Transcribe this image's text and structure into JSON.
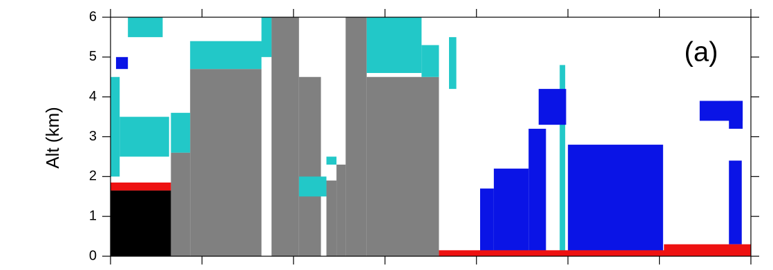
{
  "chart_data": {
    "type": "curtain",
    "ylabel": "Alt (km)",
    "annotation": "(a)",
    "xlim": [
      0,
      7
    ],
    "xticks": [
      0,
      1,
      2,
      3,
      4,
      5,
      6,
      7
    ],
    "ylim": [
      0,
      6
    ],
    "yticks": [
      0,
      1,
      2,
      3,
      4,
      5,
      6
    ],
    "series": [
      {
        "color": "#808080",
        "boxes": [
          [
            0.66,
            0.87,
            0,
            2.6
          ],
          [
            0.87,
            1.65,
            0,
            4.7
          ],
          [
            1.76,
            2.06,
            0,
            6
          ],
          [
            2.06,
            2.3,
            0,
            4.5
          ],
          [
            2.36,
            2.47,
            0,
            1.9
          ],
          [
            2.47,
            2.57,
            0,
            2.3
          ],
          [
            2.57,
            2.8,
            0,
            6
          ],
          [
            2.8,
            3.59,
            0,
            4.5
          ]
        ]
      },
      {
        "color": "#000000",
        "boxes": [
          [
            0,
            0.66,
            0,
            1.65
          ]
        ]
      },
      {
        "color": "#22c8c8",
        "boxes": [
          [
            0.19,
            0.57,
            5.5,
            6
          ],
          [
            0,
            0.1,
            2,
            4.5
          ],
          [
            0.1,
            0.64,
            2.5,
            3.5
          ],
          [
            0.66,
            0.87,
            2.6,
            3.6
          ],
          [
            0.87,
            1.65,
            4.7,
            5.4
          ],
          [
            1.65,
            1.76,
            5,
            6
          ],
          [
            2.06,
            2.36,
            1.5,
            2
          ],
          [
            2.36,
            2.47,
            2.3,
            2.5
          ],
          [
            2.8,
            3.4,
            4.6,
            6
          ],
          [
            3.4,
            3.59,
            4.5,
            5.3
          ],
          [
            3.7,
            3.78,
            4.2,
            5.5
          ],
          [
            4.91,
            4.97,
            0,
            4.8
          ]
        ]
      },
      {
        "color": "#0a14e6",
        "boxes": [
          [
            0.06,
            0.19,
            4.7,
            5
          ],
          [
            4.04,
            4.19,
            0,
            1.7
          ],
          [
            4.19,
            4.57,
            0,
            2.2
          ],
          [
            4.57,
            4.76,
            0,
            3.2
          ],
          [
            4.68,
            4.98,
            3.3,
            4.2
          ],
          [
            5,
            6.04,
            0,
            2.8
          ],
          [
            6.44,
            6.91,
            3.4,
            3.9
          ],
          [
            6.76,
            6.91,
            3.2,
            3.9
          ],
          [
            6.76,
            6.9,
            0.3,
            2.4
          ]
        ]
      },
      {
        "color": "#ee1111",
        "boxes": [
          [
            0,
            0.66,
            1.65,
            1.85
          ],
          [
            3.59,
            7,
            0,
            0.15
          ],
          [
            6.05,
            7,
            0,
            0.3
          ]
        ]
      }
    ]
  }
}
